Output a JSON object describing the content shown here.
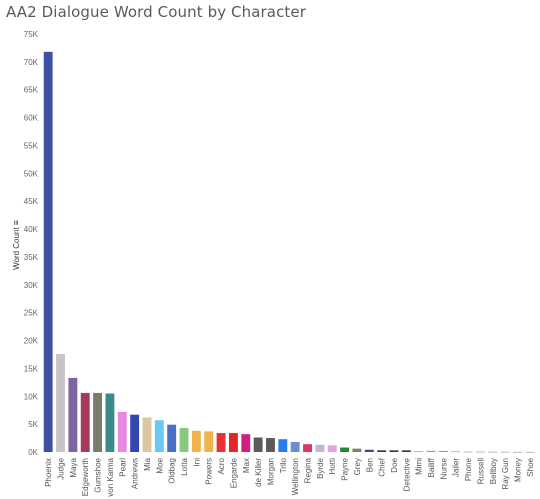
{
  "chart_data": {
    "type": "bar",
    "title": "AA2 Dialogue Word Count by Character",
    "xlabel": "",
    "ylabel": "Word Count",
    "ylim": [
      0,
      75000
    ],
    "yticks": [
      "0K",
      "5K",
      "10K",
      "15K",
      "20K",
      "25K",
      "30K",
      "35K",
      "40K",
      "45K",
      "50K",
      "55K",
      "60K",
      "65K",
      "70K",
      "75K"
    ],
    "grid": false,
    "categories": [
      "Phoenix",
      "Judge",
      "Maya",
      "Edgeworth",
      "Gumshoe",
      "von Karma",
      "Pearl",
      "Andrews",
      "Mia",
      "Moe",
      "Oldbag",
      "Lotta",
      "Ini",
      "Powers",
      "Acro",
      "Engarde",
      "Max",
      "de Killer",
      "Morgan",
      "Trilo",
      "Wellington",
      "Regina",
      "Byrde",
      "Hotti",
      "Payne",
      "Grey",
      "Ben",
      "Chief",
      "Doe",
      "Detective",
      "Mimi",
      "Bailiff",
      "Nurse",
      "Jailer",
      "Phone",
      "Russell",
      "Bellboy",
      "Ray Gun",
      "Money",
      "Shoe"
    ],
    "values": [
      71800,
      17600,
      13300,
      10600,
      10600,
      10500,
      7200,
      6700,
      6200,
      5700,
      4900,
      4300,
      3800,
      3700,
      3400,
      3400,
      3200,
      2600,
      2500,
      2300,
      1800,
      1400,
      1300,
      1200,
      800,
      600,
      400,
      300,
      300,
      300,
      150,
      200,
      200,
      120,
      80,
      60,
      50,
      40,
      30,
      20
    ],
    "colors": [
      "#3d4fa0",
      "#c9c5c7",
      "#7b66a3",
      "#a63a5a",
      "#7a7d6a",
      "#3d8a8c",
      "#e68ae0",
      "#3646b0",
      "#dcc8a0",
      "#6bc8f0",
      "#4a6fc8",
      "#86c97e",
      "#f0b24a",
      "#f0b24a",
      "#e63232",
      "#e02828",
      "#d02080",
      "#5a5a5a",
      "#5a5a5a",
      "#2a7de8",
      "#6a8fd0",
      "#e0356a",
      "#c7b3d8",
      "#e8a0e8",
      "#2a8a2a",
      "#8a7a6a",
      "#3a4a7a",
      "#3a3a3a",
      "#3a3a3a",
      "#3a3a3a",
      "#aaaaaa",
      "#999999",
      "#999999",
      "#aaaaaa",
      "#aaaaaa",
      "#aaaaaa",
      "#aaaaaa",
      "#aaaaaa",
      "#aaaaaa",
      "#aaaaaa"
    ]
  }
}
